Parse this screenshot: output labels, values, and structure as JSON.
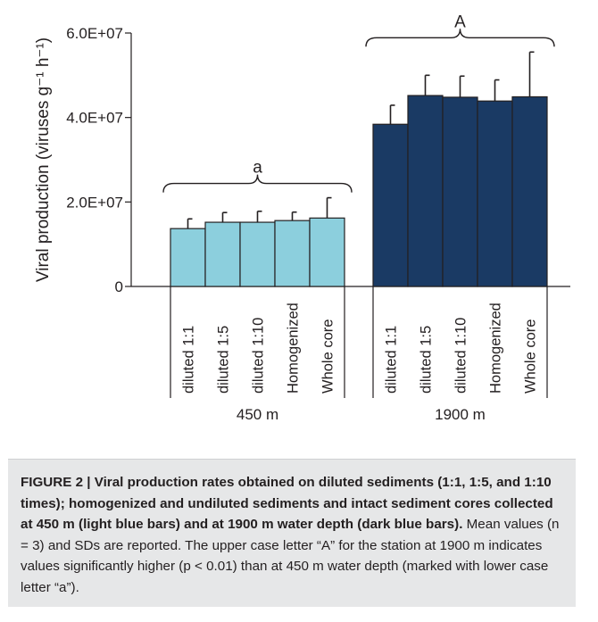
{
  "chart_data": {
    "type": "bar",
    "ylabel": "Viral production (viruses g⁻¹ h⁻¹)",
    "ylim": [
      0,
      60000000
    ],
    "yticks": [
      {
        "value": 0,
        "label": "0"
      },
      {
        "value": 20000000,
        "label": "2.0E+07"
      },
      {
        "value": 40000000,
        "label": "4.0E+07"
      },
      {
        "value": 60000000,
        "label": "6.0E+07"
      }
    ],
    "groups": [
      {
        "name": "450 m",
        "letter": "a",
        "color": "#8ccfdd",
        "categories": [
          "diluted 1:1",
          "diluted 1:5",
          "diluted 1:10",
          "Homogenized",
          "Whole core"
        ],
        "values": [
          13700000,
          15200000,
          15200000,
          15600000,
          16200000
        ],
        "errors": [
          2300000,
          2300000,
          2600000,
          2000000,
          4800000
        ]
      },
      {
        "name": "1900 m",
        "letter": "A",
        "color": "#1a3a64",
        "categories": [
          "diluted 1:1",
          "diluted 1:5",
          "diluted 1:10",
          "Homogenized",
          "Whole core"
        ],
        "values": [
          38400000,
          45200000,
          44800000,
          43900000,
          44900000
        ],
        "errors": [
          4500000,
          4800000,
          5000000,
          5000000,
          10600000
        ]
      }
    ],
    "grid": false
  },
  "caption": {
    "bold": "FIGURE 2 | Viral production rates obtained on diluted sediments (1:1, 1:5, and 1:10 times); homogenized and undiluted sediments and intact sediment cores collected at 450 m (light blue bars) and at 1900 m water depth (dark blue bars).",
    "rest": "Mean values (n = 3) and SDs are reported. The upper case letter “A” for the station at 1900 m indicates values significantly higher (p < 0.01) than at 450 m water depth (marked with lower case letter “a”)."
  }
}
